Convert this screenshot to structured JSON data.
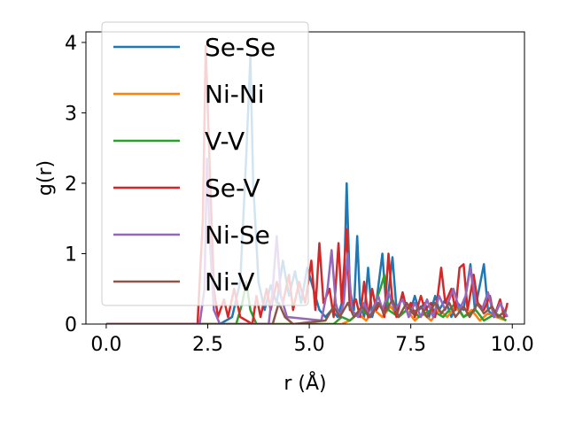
{
  "chart_data": {
    "type": "line",
    "title": "",
    "xlabel": "r (Å)",
    "ylabel": "g(r)",
    "xlim": [
      -0.5,
      10.3
    ],
    "ylim": [
      0,
      4.15
    ],
    "xticks": [
      0.0,
      2.5,
      5.0,
      7.5,
      10.0
    ],
    "xtick_labels": [
      "0.0",
      "2.5",
      "5.0",
      "7.5",
      "10.0"
    ],
    "yticks": [
      0,
      1,
      2,
      3,
      4
    ],
    "ytick_labels": [
      "0",
      "1",
      "2",
      "3",
      "4"
    ],
    "grid": false,
    "legend": "upper-left",
    "series": [
      {
        "name": "Se-Se",
        "color": "#1f77b4",
        "points": [
          [
            0,
            0
          ],
          [
            2.8,
            0
          ],
          [
            3.1,
            0.1
          ],
          [
            3.3,
            0.6
          ],
          [
            3.45,
            2.4
          ],
          [
            3.55,
            3.8
          ],
          [
            3.62,
            2.0
          ],
          [
            3.75,
            0.6
          ],
          [
            3.9,
            0.2
          ],
          [
            4.05,
            0.55
          ],
          [
            4.2,
            0.3
          ],
          [
            4.35,
            0.9
          ],
          [
            4.5,
            0.4
          ],
          [
            4.65,
            0.75
          ],
          [
            4.8,
            0.3
          ],
          [
            4.95,
            0.8
          ],
          [
            5.1,
            0.5
          ],
          [
            5.25,
            0.2
          ],
          [
            5.4,
            0.1
          ],
          [
            5.55,
            0.2
          ],
          [
            5.7,
            0.1
          ],
          [
            5.85,
            0.4
          ],
          [
            5.92,
            2.0
          ],
          [
            6.0,
            0.5
          ],
          [
            6.1,
            0.2
          ],
          [
            6.18,
            1.25
          ],
          [
            6.25,
            0.3
          ],
          [
            6.35,
            0.1
          ],
          [
            6.45,
            0.8
          ],
          [
            6.55,
            0.1
          ],
          [
            6.65,
            0.3
          ],
          [
            6.8,
            1.0
          ],
          [
            6.9,
            0.2
          ],
          [
            7.05,
            0.95
          ],
          [
            7.15,
            0.2
          ],
          [
            7.3,
            0.4
          ],
          [
            7.45,
            0.1
          ],
          [
            7.6,
            0.4
          ],
          [
            7.7,
            0.2
          ],
          [
            7.85,
            0.3
          ],
          [
            7.95,
            0.1
          ],
          [
            8.1,
            0.4
          ],
          [
            8.2,
            0.2
          ],
          [
            8.35,
            0.35
          ],
          [
            8.5,
            0.1
          ],
          [
            8.65,
            0.3
          ],
          [
            8.8,
            0.2
          ],
          [
            8.97,
            0.85
          ],
          [
            9.08,
            0.2
          ],
          [
            9.2,
            0.55
          ],
          [
            9.3,
            0.85
          ],
          [
            9.4,
            0.2
          ],
          [
            9.55,
            0.1
          ],
          [
            9.7,
            0.3
          ],
          [
            9.85,
            0.1
          ]
        ]
      },
      {
        "name": "Ni-Ni",
        "color": "#ff7f0e",
        "points": [
          [
            0,
            0
          ],
          [
            5.8,
            0
          ],
          [
            6.0,
            0.05
          ],
          [
            6.2,
            0.15
          ],
          [
            6.4,
            0.05
          ],
          [
            6.6,
            0.2
          ],
          [
            6.8,
            0.1
          ],
          [
            7.0,
            0.25
          ],
          [
            7.2,
            0.1
          ],
          [
            7.4,
            0.2
          ],
          [
            7.6,
            0.05
          ],
          [
            7.8,
            0.15
          ],
          [
            8.0,
            0.05
          ],
          [
            8.2,
            0.2
          ],
          [
            8.4,
            0.1
          ],
          [
            8.6,
            0.25
          ],
          [
            8.8,
            0.1
          ],
          [
            9.0,
            0.2
          ],
          [
            9.2,
            0.05
          ],
          [
            9.4,
            0.15
          ],
          [
            9.6,
            0.1
          ],
          [
            9.85,
            0.05
          ]
        ]
      },
      {
        "name": "V-V",
        "color": "#2ca02c",
        "points": [
          [
            0,
            0
          ],
          [
            3.2,
            0
          ],
          [
            3.35,
            0.3
          ],
          [
            3.45,
            0.6
          ],
          [
            3.55,
            0.2
          ],
          [
            3.7,
            0
          ],
          [
            5.6,
            0
          ],
          [
            5.8,
            0.1
          ],
          [
            6.0,
            0.05
          ],
          [
            6.3,
            0.2
          ],
          [
            6.5,
            0.1
          ],
          [
            6.75,
            0.5
          ],
          [
            6.85,
            0.7
          ],
          [
            6.95,
            0.2
          ],
          [
            7.2,
            0.1
          ],
          [
            7.5,
            0.25
          ],
          [
            7.7,
            0.1
          ],
          [
            8.0,
            0.2
          ],
          [
            8.3,
            0.1
          ],
          [
            8.6,
            0.3
          ],
          [
            8.8,
            0.1
          ],
          [
            9.1,
            0.2
          ],
          [
            9.3,
            0.05
          ],
          [
            9.6,
            0.15
          ],
          [
            9.85,
            0.05
          ]
        ]
      },
      {
        "name": "Se-V",
        "color": "#d62728",
        "points": [
          [
            0,
            0
          ],
          [
            2.25,
            0
          ],
          [
            2.38,
            1.5
          ],
          [
            2.45,
            3.95
          ],
          [
            2.55,
            2.2
          ],
          [
            2.65,
            0.5
          ],
          [
            2.75,
            0.1
          ],
          [
            2.9,
            0.35
          ],
          [
            3.0,
            0.1
          ],
          [
            3.15,
            0.5
          ],
          [
            3.3,
            0.1
          ],
          [
            3.6,
            0.0
          ],
          [
            3.7,
            0.4
          ],
          [
            3.8,
            0.1
          ],
          [
            3.95,
            0.5
          ],
          [
            4.05,
            0.2
          ],
          [
            4.2,
            0.6
          ],
          [
            4.35,
            0.3
          ],
          [
            4.5,
            0.7
          ],
          [
            4.6,
            0.2
          ],
          [
            4.75,
            0.6
          ],
          [
            4.9,
            0.3
          ],
          [
            5.05,
            0.9
          ],
          [
            5.15,
            0.2
          ],
          [
            5.25,
            1.15
          ],
          [
            5.35,
            0.3
          ],
          [
            5.5,
            0.5
          ],
          [
            5.6,
            0.1
          ],
          [
            5.72,
            1.15
          ],
          [
            5.8,
            0.3
          ],
          [
            5.92,
            1.35
          ],
          [
            6.0,
            0.2
          ],
          [
            6.15,
            0.35
          ],
          [
            6.25,
            0.1
          ],
          [
            6.35,
            0.6
          ],
          [
            6.45,
            0.1
          ],
          [
            6.55,
            0.5
          ],
          [
            6.65,
            0.2
          ],
          [
            6.75,
            0.3
          ],
          [
            6.85,
            0.1
          ],
          [
            6.95,
            1.0
          ],
          [
            7.05,
            0.3
          ],
          [
            7.15,
            0.1
          ],
          [
            7.3,
            0.45
          ],
          [
            7.4,
            0.2
          ],
          [
            7.5,
            0.3
          ],
          [
            7.6,
            0.1
          ],
          [
            7.75,
            0.4
          ],
          [
            7.85,
            0.2
          ],
          [
            8.0,
            0.3
          ],
          [
            8.1,
            0.1
          ],
          [
            8.25,
            0.8
          ],
          [
            8.35,
            0.3
          ],
          [
            8.5,
            0.5
          ],
          [
            8.6,
            0.2
          ],
          [
            8.7,
            0.8
          ],
          [
            8.8,
            0.85
          ],
          [
            8.9,
            0.2
          ],
          [
            9.05,
            0.7
          ],
          [
            9.15,
            0.3
          ],
          [
            9.3,
            0.2
          ],
          [
            9.45,
            0.4
          ],
          [
            9.55,
            0.1
          ],
          [
            9.7,
            0.35
          ],
          [
            9.8,
            0.1
          ],
          [
            9.88,
            0.3
          ]
        ]
      },
      {
        "name": "Ni-Se",
        "color": "#9467bd",
        "points": [
          [
            0,
            0
          ],
          [
            2.3,
            0
          ],
          [
            2.42,
            0.5
          ],
          [
            2.48,
            2.35
          ],
          [
            2.55,
            1.2
          ],
          [
            2.65,
            0.2
          ],
          [
            2.8,
            0
          ],
          [
            4.0,
            0
          ],
          [
            4.1,
            0.5
          ],
          [
            4.2,
            1.25
          ],
          [
            4.3,
            0.4
          ],
          [
            4.45,
            0.1
          ],
          [
            5.3,
            0.05
          ],
          [
            5.45,
            0.5
          ],
          [
            5.55,
            1.05
          ],
          [
            5.65,
            0.3
          ],
          [
            5.75,
            0.1
          ],
          [
            5.85,
            0.3
          ],
          [
            5.95,
            1.0
          ],
          [
            6.05,
            0.2
          ],
          [
            6.2,
            0.1
          ],
          [
            6.35,
            0.3
          ],
          [
            6.5,
            0.1
          ],
          [
            6.7,
            0.4
          ],
          [
            6.8,
            0.2
          ],
          [
            6.95,
            0.45
          ],
          [
            7.1,
            0.2
          ],
          [
            7.3,
            0.35
          ],
          [
            7.45,
            0.1
          ],
          [
            7.6,
            0.3
          ],
          [
            7.75,
            0.1
          ],
          [
            7.9,
            0.35
          ],
          [
            8.05,
            0.1
          ],
          [
            8.2,
            0.4
          ],
          [
            8.35,
            0.2
          ],
          [
            8.55,
            0.5
          ],
          [
            8.7,
            0.2
          ],
          [
            8.85,
            0.4
          ],
          [
            8.97,
            0.8
          ],
          [
            9.1,
            0.3
          ],
          [
            9.25,
            0.2
          ],
          [
            9.4,
            0.45
          ],
          [
            9.55,
            0.1
          ],
          [
            9.7,
            0.3
          ],
          [
            9.88,
            0.1
          ]
        ]
      },
      {
        "name": "Ni-V",
        "color": "#8c564b",
        "points": [
          [
            0,
            0
          ],
          [
            4.1,
            0
          ],
          [
            4.25,
            0.3
          ],
          [
            4.4,
            0.1
          ],
          [
            4.6,
            0.0
          ],
          [
            5.4,
            0.05
          ],
          [
            5.6,
            0.25
          ],
          [
            5.75,
            0.1
          ],
          [
            5.95,
            0.3
          ],
          [
            6.1,
            0.1
          ],
          [
            6.3,
            0.25
          ],
          [
            6.5,
            0.1
          ],
          [
            6.7,
            0.3
          ],
          [
            6.85,
            0.15
          ],
          [
            7.05,
            0.35
          ],
          [
            7.2,
            0.1
          ],
          [
            7.4,
            0.3
          ],
          [
            7.55,
            0.15
          ],
          [
            7.75,
            0.25
          ],
          [
            7.9,
            0.1
          ],
          [
            8.1,
            0.3
          ],
          [
            8.25,
            0.15
          ],
          [
            8.45,
            0.3
          ],
          [
            8.6,
            0.1
          ],
          [
            8.8,
            0.25
          ],
          [
            8.95,
            0.1
          ],
          [
            9.15,
            0.3
          ],
          [
            9.3,
            0.15
          ],
          [
            9.5,
            0.25
          ],
          [
            9.65,
            0.1
          ],
          [
            9.85,
            0.2
          ]
        ]
      }
    ]
  }
}
